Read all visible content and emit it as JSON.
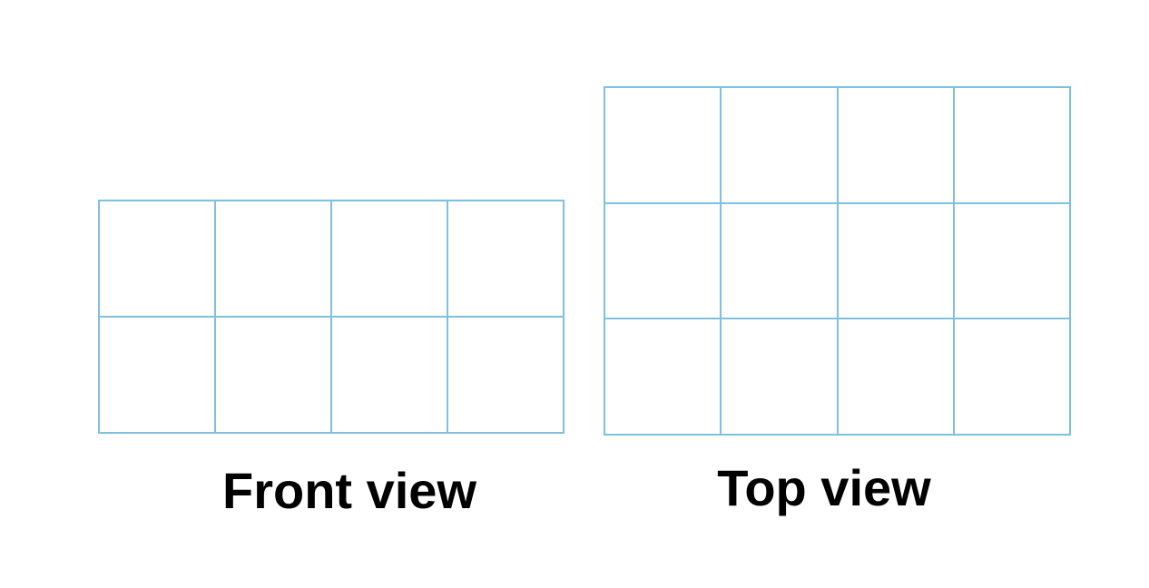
{
  "colors": {
    "grid_line": "#7fc0df",
    "label_text": "#000000",
    "background": "#ffffff"
  },
  "views": {
    "front": {
      "label": "Front view",
      "rows": 2,
      "cols": 4
    },
    "top": {
      "label": "Top view",
      "rows": 3,
      "cols": 4
    }
  }
}
